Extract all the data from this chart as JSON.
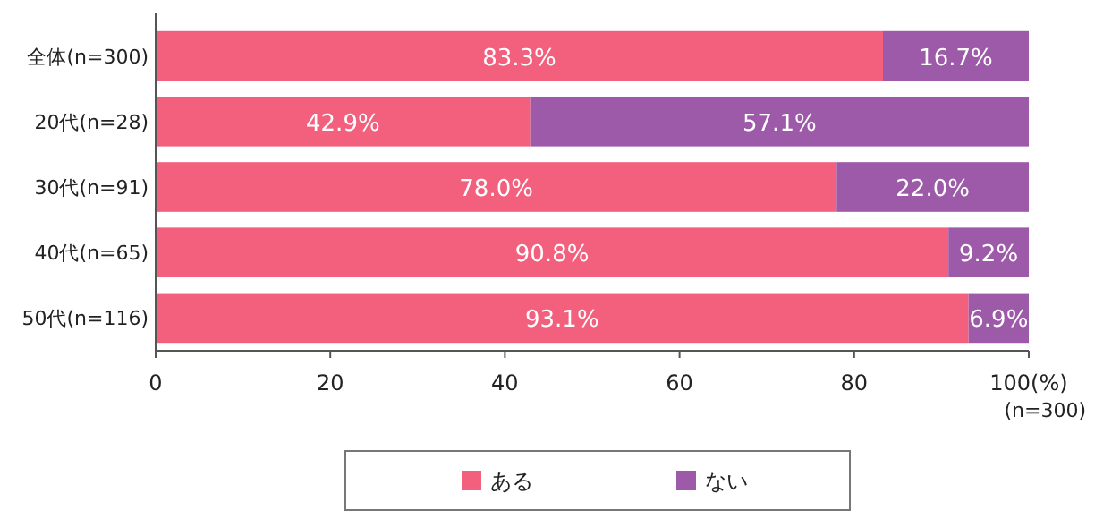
{
  "chart_data": {
    "type": "bar",
    "orientation": "horizontal",
    "stacked": true,
    "categories": [
      "全体(n=300)",
      "20代(n=28)",
      "30代(n=91)",
      "40代(n=65)",
      "50代(n=116)"
    ],
    "series": [
      {
        "name": "ある",
        "color": "#f2607e",
        "values": [
          83.3,
          42.9,
          78.0,
          90.8,
          93.1
        ],
        "value_labels": [
          "83.3%",
          "42.9%",
          "78.0%",
          "90.8%",
          "93.1%"
        ]
      },
      {
        "name": "ない",
        "color": "#9c5aa8",
        "values": [
          16.7,
          57.1,
          22.0,
          9.2,
          6.9
        ],
        "value_labels": [
          "16.7%",
          "57.1%",
          "22.0%",
          "9.2%",
          "6.9%"
        ]
      }
    ],
    "xlim": [
      0,
      100
    ],
    "xticks": [
      0,
      20,
      40,
      60,
      80,
      {
        "value": 100,
        "label": "100(%)"
      }
    ],
    "annotations": [
      "(n=300)"
    ],
    "grid": false,
    "legend": "bottom"
  }
}
